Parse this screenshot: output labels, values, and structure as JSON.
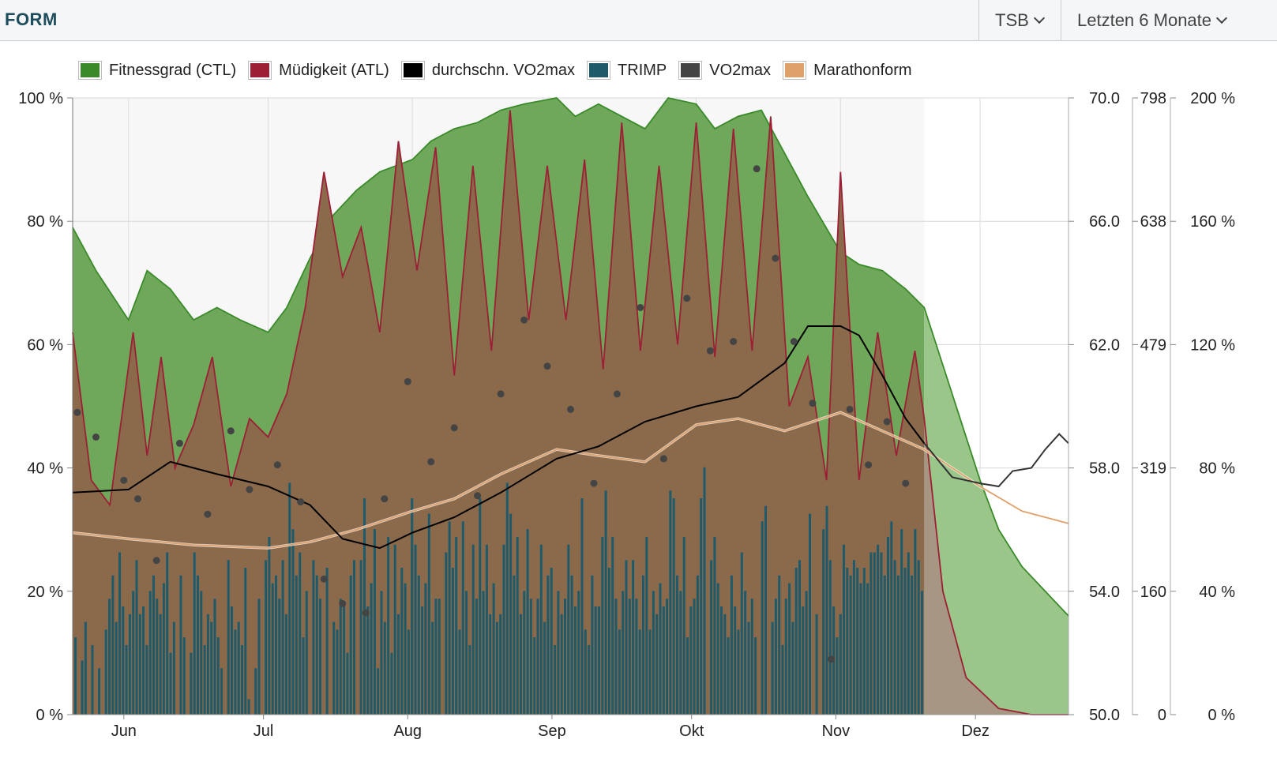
{
  "header": {
    "title": "FORM",
    "metric_select": "TSB",
    "range_select": "Letzten 6 Monate"
  },
  "legend": [
    {
      "label": "Fitnessgrad (CTL)",
      "color": "#3a8a2a"
    },
    {
      "label": "Müdigkeit (ATL)",
      "color": "#9c1f36"
    },
    {
      "label": "durchschn. VO2max",
      "color": "#000000"
    },
    {
      "label": "TRIMP",
      "color": "#1f5a6a"
    },
    {
      "label": "VO2max",
      "color": "#444444"
    },
    {
      "label": "Marathonform",
      "color": "#e0a06a"
    }
  ],
  "chart_data": {
    "type": "area",
    "x_axis": {
      "ticks": [
        "Jun",
        "Jul",
        "Aug",
        "Sep",
        "Okt",
        "Nov",
        "Dez"
      ],
      "start": "2019-05-20",
      "end": "2019-12-20"
    },
    "axes": {
      "percent_left": {
        "ticks": [
          "0 %",
          "20 %",
          "40 %",
          "60 %",
          "80 %",
          "100 %"
        ],
        "range": [
          0,
          100
        ]
      },
      "vo2max": {
        "ticks": [
          "50.0",
          "54.0",
          "58.0",
          "62.0",
          "66.0",
          "70.0"
        ],
        "range": [
          50,
          70
        ]
      },
      "trimp": {
        "ticks": [
          "0",
          "160",
          "319",
          "479",
          "638",
          "798"
        ],
        "range": [
          0,
          798
        ]
      },
      "percent_right": {
        "ticks": [
          "0 %",
          "40 %",
          "80 %",
          "120 %",
          "160 %",
          "200 %"
        ],
        "range": [
          0,
          200
        ]
      }
    },
    "forecast_start": "2019-11-19",
    "series": [
      {
        "name": "Fitnessgrad (CTL)",
        "axis": "percent_left",
        "kind": "area",
        "points": [
          [
            "2019-05-20",
            79
          ],
          [
            "2019-05-25",
            72
          ],
          [
            "2019-06-01",
            64
          ],
          [
            "2019-06-05",
            72
          ],
          [
            "2019-06-10",
            69
          ],
          [
            "2019-06-15",
            64
          ],
          [
            "2019-06-20",
            66
          ],
          [
            "2019-06-25",
            64
          ],
          [
            "2019-07-01",
            62
          ],
          [
            "2019-07-05",
            66
          ],
          [
            "2019-07-10",
            74
          ],
          [
            "2019-07-15",
            81
          ],
          [
            "2019-07-20",
            85
          ],
          [
            "2019-07-25",
            88
          ],
          [
            "2019-08-01",
            90
          ],
          [
            "2019-08-05",
            93
          ],
          [
            "2019-08-10",
            95
          ],
          [
            "2019-08-15",
            96
          ],
          [
            "2019-08-20",
            98
          ],
          [
            "2019-08-25",
            99
          ],
          [
            "2019-09-01",
            100
          ],
          [
            "2019-09-05",
            97
          ],
          [
            "2019-09-10",
            99
          ],
          [
            "2019-09-15",
            97
          ],
          [
            "2019-09-20",
            95
          ],
          [
            "2019-09-25",
            100
          ],
          [
            "2019-10-01",
            99
          ],
          [
            "2019-10-05",
            95
          ],
          [
            "2019-10-10",
            97
          ],
          [
            "2019-10-15",
            98
          ],
          [
            "2019-10-20",
            91
          ],
          [
            "2019-10-25",
            84
          ],
          [
            "2019-11-01",
            75
          ],
          [
            "2019-11-05",
            73
          ],
          [
            "2019-11-10",
            72
          ],
          [
            "2019-11-15",
            69
          ],
          [
            "2019-11-19",
            66
          ],
          [
            "2019-11-25",
            52
          ],
          [
            "2019-12-01",
            38
          ],
          [
            "2019-12-05",
            30
          ],
          [
            "2019-12-10",
            24
          ],
          [
            "2019-12-15",
            20
          ],
          [
            "2019-12-20",
            16
          ]
        ]
      },
      {
        "name": "Müdigkeit (ATL)",
        "axis": "percent_left",
        "kind": "area",
        "points": [
          [
            "2019-05-20",
            62
          ],
          [
            "2019-05-24",
            38
          ],
          [
            "2019-05-28",
            34
          ],
          [
            "2019-06-02",
            62
          ],
          [
            "2019-06-05",
            42
          ],
          [
            "2019-06-08",
            58
          ],
          [
            "2019-06-11",
            40
          ],
          [
            "2019-06-15",
            47
          ],
          [
            "2019-06-19",
            58
          ],
          [
            "2019-06-23",
            37
          ],
          [
            "2019-06-27",
            48
          ],
          [
            "2019-07-01",
            45
          ],
          [
            "2019-07-05",
            52
          ],
          [
            "2019-07-09",
            66
          ],
          [
            "2019-07-13",
            88
          ],
          [
            "2019-07-17",
            71
          ],
          [
            "2019-07-21",
            79
          ],
          [
            "2019-07-25",
            62
          ],
          [
            "2019-07-29",
            93
          ],
          [
            "2019-08-02",
            72
          ],
          [
            "2019-08-06",
            92
          ],
          [
            "2019-08-10",
            55
          ],
          [
            "2019-08-14",
            89
          ],
          [
            "2019-08-18",
            59
          ],
          [
            "2019-08-22",
            98
          ],
          [
            "2019-08-26",
            64
          ],
          [
            "2019-08-30",
            89
          ],
          [
            "2019-09-03",
            64
          ],
          [
            "2019-09-07",
            90
          ],
          [
            "2019-09-11",
            56
          ],
          [
            "2019-09-15",
            96
          ],
          [
            "2019-09-19",
            59
          ],
          [
            "2019-09-23",
            89
          ],
          [
            "2019-09-27",
            60
          ],
          [
            "2019-10-01",
            96
          ],
          [
            "2019-10-05",
            58
          ],
          [
            "2019-10-09",
            95
          ],
          [
            "2019-10-13",
            59
          ],
          [
            "2019-10-17",
            97
          ],
          [
            "2019-10-21",
            50
          ],
          [
            "2019-10-25",
            58
          ],
          [
            "2019-10-29",
            38
          ],
          [
            "2019-11-01",
            88
          ],
          [
            "2019-11-05",
            38
          ],
          [
            "2019-11-09",
            62
          ],
          [
            "2019-11-13",
            42
          ],
          [
            "2019-11-17",
            59
          ],
          [
            "2019-11-19",
            48
          ],
          [
            "2019-11-23",
            20
          ],
          [
            "2019-11-28",
            6
          ],
          [
            "2019-12-05",
            1
          ],
          [
            "2019-12-12",
            0
          ],
          [
            "2019-12-20",
            0
          ]
        ]
      },
      {
        "name": "durchschn. VO2max",
        "axis": "vo2max",
        "kind": "line",
        "points": [
          [
            "2019-05-20",
            57.2
          ],
          [
            "2019-06-01",
            57.3
          ],
          [
            "2019-06-10",
            58.2
          ],
          [
            "2019-06-20",
            57.8
          ],
          [
            "2019-07-01",
            57.4
          ],
          [
            "2019-07-10",
            56.8
          ],
          [
            "2019-07-17",
            55.7
          ],
          [
            "2019-07-25",
            55.4
          ],
          [
            "2019-08-01",
            55.9
          ],
          [
            "2019-08-10",
            56.4
          ],
          [
            "2019-08-20",
            57.2
          ],
          [
            "2019-09-01",
            58.3
          ],
          [
            "2019-09-10",
            58.7
          ],
          [
            "2019-09-20",
            59.5
          ],
          [
            "2019-10-01",
            60.0
          ],
          [
            "2019-10-10",
            60.3
          ],
          [
            "2019-10-20",
            61.4
          ],
          [
            "2019-10-25",
            62.6
          ],
          [
            "2019-11-01",
            62.6
          ],
          [
            "2019-11-05",
            62.3
          ],
          [
            "2019-11-10",
            61.0
          ],
          [
            "2019-11-15",
            59.6
          ],
          [
            "2019-11-19",
            58.8
          ],
          [
            "2019-11-25",
            57.7
          ],
          [
            "2019-12-01",
            57.5
          ],
          [
            "2019-12-05",
            57.4
          ],
          [
            "2019-12-08",
            57.9
          ],
          [
            "2019-12-12",
            58.0
          ],
          [
            "2019-12-15",
            58.6
          ],
          [
            "2019-12-18",
            59.1
          ],
          [
            "2019-12-20",
            58.8
          ]
        ]
      },
      {
        "name": "VO2max",
        "axis": "vo2max",
        "kind": "scatter",
        "points": [
          [
            "2019-05-21",
            59.8
          ],
          [
            "2019-05-25",
            59.0
          ],
          [
            "2019-05-31",
            57.6
          ],
          [
            "2019-06-03",
            57.0
          ],
          [
            "2019-06-07",
            55.0
          ],
          [
            "2019-06-12",
            58.8
          ],
          [
            "2019-06-18",
            56.5
          ],
          [
            "2019-06-23",
            59.2
          ],
          [
            "2019-06-27",
            57.3
          ],
          [
            "2019-07-03",
            58.1
          ],
          [
            "2019-07-08",
            56.9
          ],
          [
            "2019-07-13",
            54.4
          ],
          [
            "2019-07-17",
            53.6
          ],
          [
            "2019-07-22",
            53.3
          ],
          [
            "2019-07-26",
            57.0
          ],
          [
            "2019-07-31",
            60.8
          ],
          [
            "2019-08-05",
            58.2
          ],
          [
            "2019-08-10",
            59.3
          ],
          [
            "2019-08-15",
            57.1
          ],
          [
            "2019-08-20",
            60.4
          ],
          [
            "2019-08-25",
            62.8
          ],
          [
            "2019-08-30",
            61.3
          ],
          [
            "2019-09-04",
            59.9
          ],
          [
            "2019-09-09",
            57.5
          ],
          [
            "2019-09-14",
            60.4
          ],
          [
            "2019-09-19",
            63.2
          ],
          [
            "2019-09-24",
            58.3
          ],
          [
            "2019-09-29",
            63.5
          ],
          [
            "2019-10-04",
            61.8
          ],
          [
            "2019-10-09",
            62.1
          ],
          [
            "2019-10-14",
            67.7
          ],
          [
            "2019-10-18",
            64.8
          ],
          [
            "2019-10-22",
            62.1
          ],
          [
            "2019-10-26",
            60.1
          ],
          [
            "2019-10-30",
            51.8
          ],
          [
            "2019-11-03",
            59.9
          ],
          [
            "2019-11-07",
            58.1
          ],
          [
            "2019-11-11",
            59.5
          ],
          [
            "2019-11-15",
            57.5
          ]
        ]
      },
      {
        "name": "Marathonform",
        "axis": "percent_right",
        "kind": "line",
        "points": [
          [
            "2019-05-20",
            59
          ],
          [
            "2019-06-01",
            57
          ],
          [
            "2019-06-15",
            55
          ],
          [
            "2019-07-01",
            54
          ],
          [
            "2019-07-10",
            56
          ],
          [
            "2019-07-20",
            60
          ],
          [
            "2019-08-01",
            66
          ],
          [
            "2019-08-10",
            70
          ],
          [
            "2019-08-20",
            78
          ],
          [
            "2019-09-01",
            86
          ],
          [
            "2019-09-10",
            84
          ],
          [
            "2019-09-20",
            82
          ],
          [
            "2019-10-01",
            94
          ],
          [
            "2019-10-10",
            96
          ],
          [
            "2019-10-20",
            92
          ],
          [
            "2019-11-01",
            98
          ],
          [
            "2019-11-10",
            92
          ],
          [
            "2019-11-19",
            86
          ],
          [
            "2019-12-01",
            74
          ],
          [
            "2019-12-10",
            66
          ],
          [
            "2019-12-20",
            62
          ]
        ]
      },
      {
        "name": "TRIMP",
        "axis": "trimp",
        "kind": "bar",
        "values": [
          100,
          0,
          70,
          120,
          0,
          90,
          0,
          60,
          0,
          110,
          150,
          180,
          120,
          210,
          140,
          90,
          130,
          160,
          200,
          130,
          140,
          90,
          160,
          180,
          150,
          130,
          170,
          210,
          80,
          120,
          0,
          180,
          100,
          0,
          80,
          210,
          180,
          160,
          90,
          130,
          120,
          150,
          100,
          60,
          0,
          200,
          140,
          110,
          120,
          90,
          190,
          20,
          0,
          60,
          150,
          0,
          200,
          230,
          170,
          180,
          150,
          200,
          130,
          300,
          240,
          180,
          210,
          100,
          160,
          0,
          200,
          180,
          150,
          0,
          190,
          0,
          120,
          110,
          150,
          140,
          80,
          180,
          200,
          0,
          200,
          280,
          140,
          170,
          240,
          60,
          160,
          120,
          230,
          80,
          220,
          130,
          190,
          170,
          110,
          280,
          220,
          180,
          140,
          170,
          260,
          120,
          150,
          150,
          0,
          210,
          250,
          190,
          230,
          110,
          250,
          160,
          90,
          220,
          150,
          280,
          160,
          220,
          130,
          170,
          120,
          130,
          220,
          300,
          260,
          180,
          230,
          130,
          160,
          240,
          150,
          100,
          150,
          220,
          120,
          180,
          190,
          90,
          160,
          130,
          150,
          220,
          180,
          140,
          160,
          280,
          110,
          90,
          180,
          140,
          140,
          230,
          290,
          190,
          230,
          150,
          110,
          160,
          200,
          150,
          200,
          150,
          110,
          180,
          230,
          110,
          160,
          130,
          170,
          140,
          150,
          290,
          280,
          180,
          160,
          230,
          100,
          140,
          150,
          180,
          280,
          320,
          0,
          200,
          230,
          170,
          140,
          130,
          100,
          180,
          140,
          110,
          210,
          160,
          120,
          150,
          100,
          0,
          250,
          270,
          0,
          120,
          150,
          180,
          90,
          150,
          170,
          120,
          190,
          200,
          140,
          160,
          260,
          0,
          130,
          0,
          240,
          270,
          200,
          140,
          100,
          130,
          220,
          190,
          180,
          200,
          190,
          170,
          190,
          170,
          210,
          210,
          220,
          210,
          180,
          230,
          250,
          200,
          180,
          240,
          190,
          210,
          180,
          240,
          200,
          160
        ]
      }
    ]
  }
}
